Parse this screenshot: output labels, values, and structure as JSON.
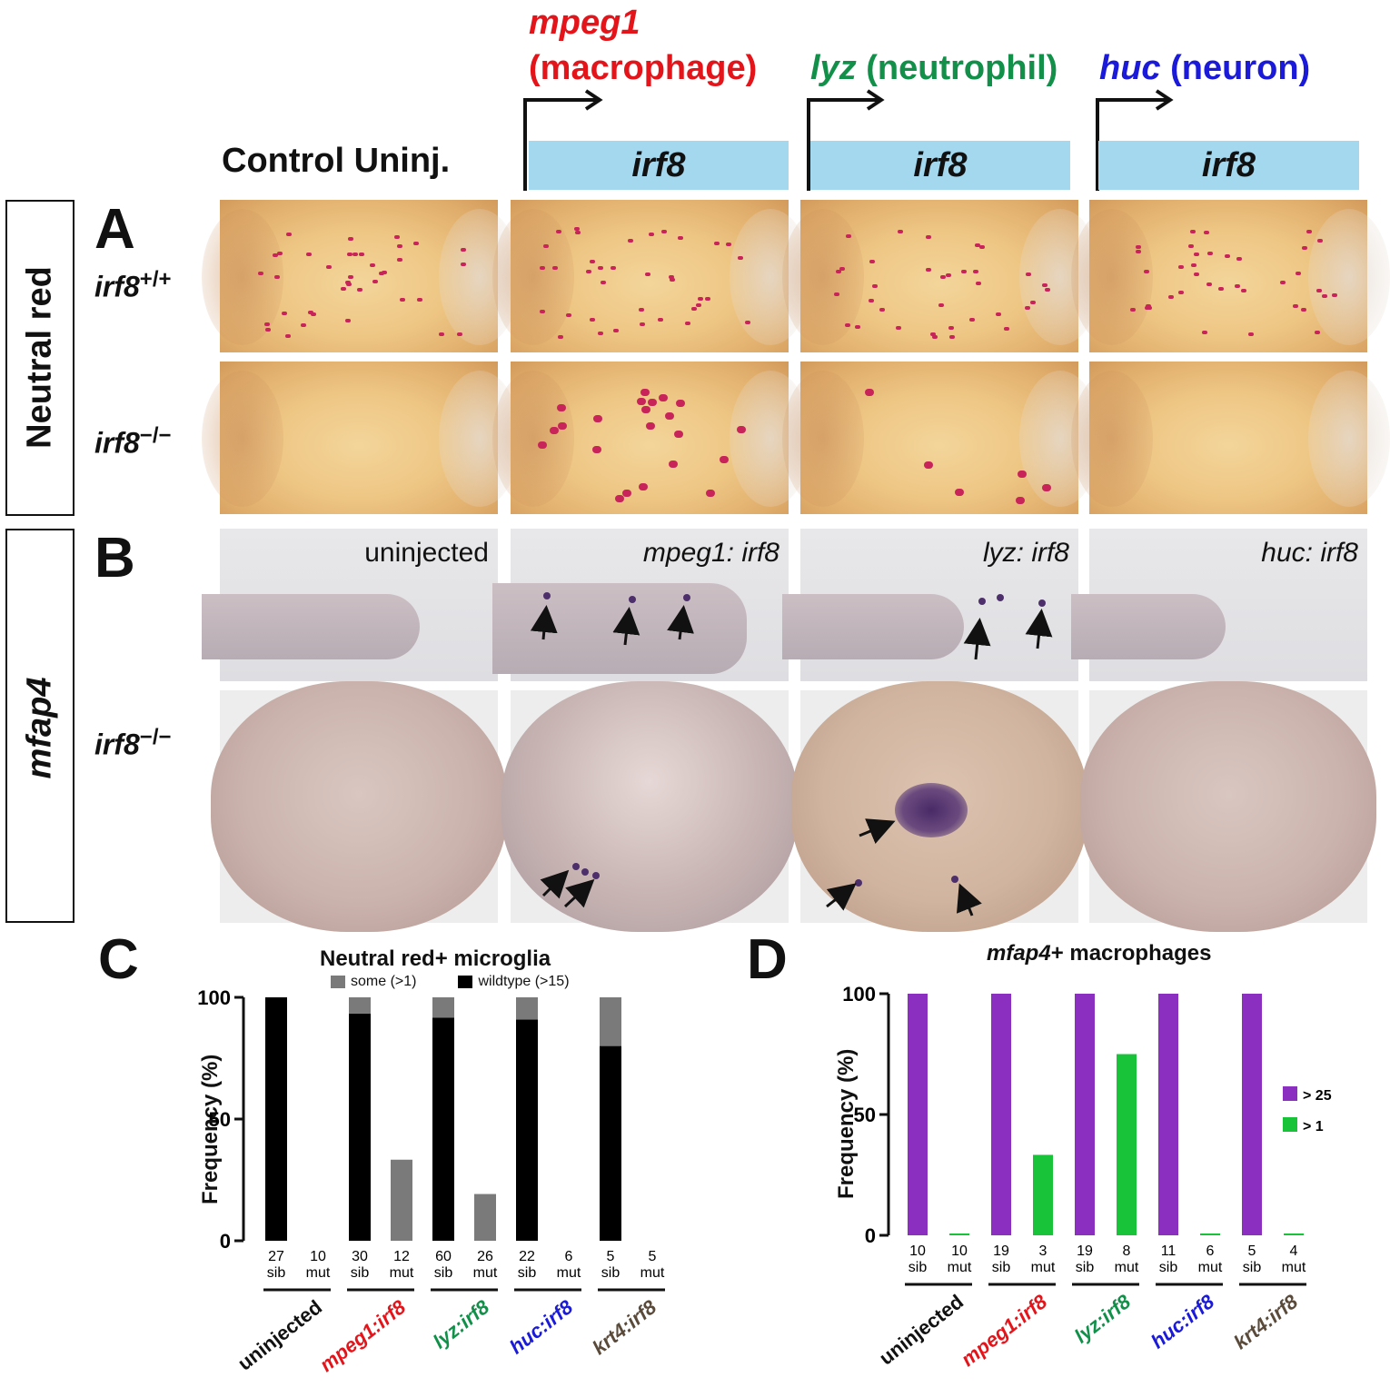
{
  "header": {
    "control_label": "Control Uninj.",
    "columns": [
      {
        "gene": "mpeg1",
        "cell": "(macrophage)",
        "bar": "irf8",
        "color": "#e4141b"
      },
      {
        "gene": "lyz",
        "cell": "(neutrophil)",
        "bar": "irf8",
        "color": "#12904a"
      },
      {
        "gene": "huc",
        "cell": "(neuron)",
        "bar": "irf8",
        "color": "#1a1ad8"
      }
    ]
  },
  "side": {
    "neutral_red": "Neutral red",
    "mfap4": "mfap4"
  },
  "panels": {
    "A": {
      "letter": "A",
      "genotype_wt": "irf8",
      "genotype_wt_sup": "+/+",
      "genotype_mut": "irf8",
      "genotype_mut_sup": "−/−"
    },
    "B": {
      "letter": "B",
      "genotype_mut": "irf8",
      "genotype_mut_sup": "−/−",
      "captions": [
        "uninjected",
        "mpeg1: irf8",
        "lyz: irf8",
        "huc: irf8"
      ]
    },
    "C": {
      "letter": "C"
    },
    "D": {
      "letter": "D"
    }
  },
  "groups": [
    {
      "name": "uninjected",
      "color": "#111111"
    },
    {
      "name": "mpeg1:irf8",
      "color": "#e4141b"
    },
    {
      "name": "lyz:irf8",
      "color": "#12904a"
    },
    {
      "name": "huc:irf8",
      "color": "#1a1ad8"
    },
    {
      "name": "krt4:irf8",
      "color": "#5a4a3a"
    }
  ],
  "chart_data": [
    {
      "type": "bar",
      "title": "Neutral red+ microglia",
      "ylabel": "Frequency (%)",
      "ylim": [
        0,
        100
      ],
      "yticks": [
        0,
        50,
        100
      ],
      "legend": [
        {
          "name": "some (>1)",
          "color": "#7a7a7a"
        },
        {
          "name": "wildtype (>15)",
          "color": "#000000"
        }
      ],
      "stacked": true,
      "categories": [
        "27 sib",
        "10 mut",
        "30 sib",
        "12 mut",
        "60 sib",
        "26 mut",
        "22 sib",
        "6 mut",
        "5 sib",
        "5 mut"
      ],
      "n": [
        "27",
        "10",
        "30",
        "12",
        "60",
        "26",
        "22",
        "6",
        "5",
        "5"
      ],
      "genotype": [
        "sib",
        "mut",
        "sib",
        "mut",
        "sib",
        "mut",
        "sib",
        "mut",
        "sib",
        "mut"
      ],
      "series": [
        {
          "name": "wildtype (>15)",
          "values": [
            100,
            0,
            93.3,
            0,
            91.7,
            0,
            90.9,
            0,
            80,
            0
          ]
        },
        {
          "name": "some (>1)",
          "values": [
            0,
            0,
            6.7,
            33.3,
            8.3,
            19.2,
            9.1,
            0,
            20,
            0
          ]
        }
      ]
    },
    {
      "type": "bar",
      "title": "mfap4+ macrophages",
      "title_italic": "mfap4",
      "title_rest": "+ macrophages",
      "ylabel": "Frequency (%)",
      "ylim": [
        0,
        100
      ],
      "yticks": [
        0,
        50,
        100
      ],
      "legend": [
        {
          "name": "> 25",
          "color": "#8a2fbf"
        },
        {
          "name": "> 1",
          "color": "#18c33a"
        }
      ],
      "categories": [
        "10 sib",
        "10 mut",
        "19 sib",
        "3 mut",
        "19 sib",
        "8 mut",
        "11 sib",
        "6 mut",
        "5 sib",
        "4 mut"
      ],
      "n": [
        "10",
        "10",
        "19",
        "3",
        "19",
        "8",
        "11",
        "6",
        "5",
        "4"
      ],
      "genotype": [
        "sib",
        "mut",
        "sib",
        "mut",
        "sib",
        "mut",
        "sib",
        "mut",
        "sib",
        "mut"
      ],
      "series": [
        {
          "name": "> 25",
          "values": [
            100,
            0,
            100,
            0,
            100,
            0,
            100,
            0,
            100,
            0
          ]
        },
        {
          "name": "> 1",
          "values": [
            0,
            0,
            0,
            33.3,
            0,
            75,
            0,
            0,
            0,
            0
          ]
        }
      ]
    }
  ]
}
